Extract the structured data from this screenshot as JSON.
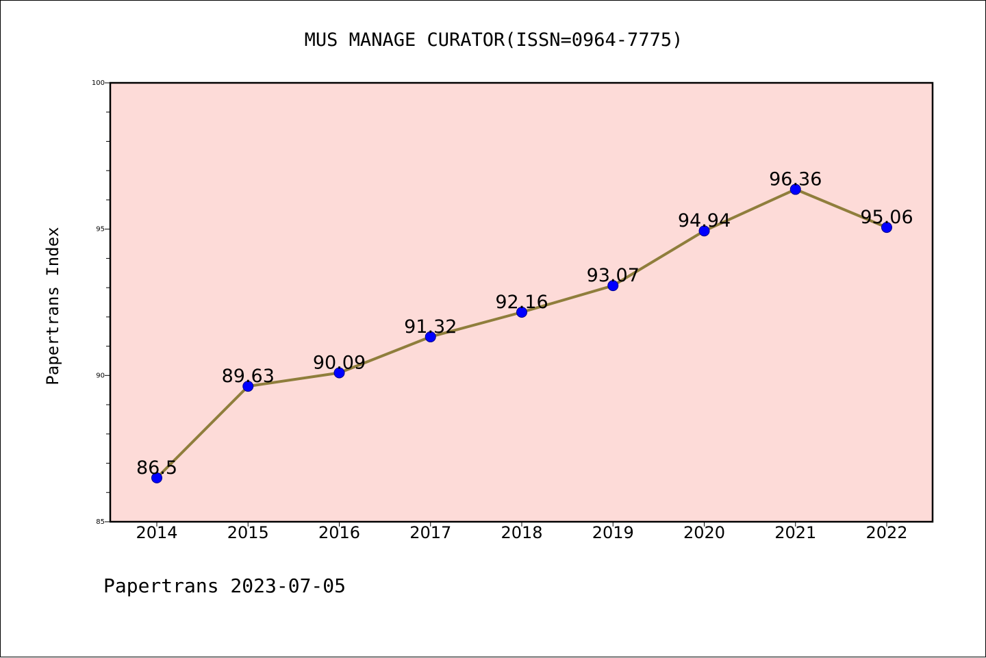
{
  "colors": {
    "plot_background": "#fddbd8",
    "line": "#8f7e3c",
    "marker_fill": "#0000ff",
    "marker_edge": "#00008b"
  },
  "footer": "Papertrans 2023-07-05",
  "chart_data": {
    "type": "line",
    "title": "MUS MANAGE CURATOR(ISSN=0964-7775)",
    "xlabel": "",
    "ylabel": "Papertrans Index",
    "categories": [
      "2014",
      "2015",
      "2016",
      "2017",
      "2018",
      "2019",
      "2020",
      "2021",
      "2022"
    ],
    "values": [
      86.5,
      89.63,
      90.09,
      91.32,
      92.16,
      93.07,
      94.94,
      96.36,
      95.06
    ],
    "data_labels": [
      "86.5",
      "89.63",
      "90.09",
      "91.32",
      "92.16",
      "93.07",
      "94.94",
      "96.36",
      "95.06"
    ],
    "ylim": [
      85,
      100
    ],
    "y_ticks": [
      "85",
      "90",
      "95",
      "100"
    ],
    "grid": false,
    "legend": "none"
  }
}
